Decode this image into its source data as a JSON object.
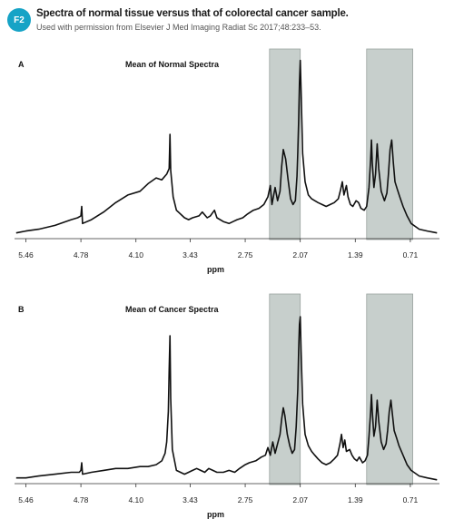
{
  "figure": {
    "badge": "F2",
    "title": "Spectra of normal tissue versus that of colorectal cancer sample.",
    "subtitle": "Used with permission from Elsevier J Med Imaging Radiat Sc 2017;48:233–53.",
    "colors": {
      "badge": "#16a3c6",
      "shade": "#c7cfcc",
      "line": "#111111"
    }
  },
  "chart_data": [
    {
      "type": "line",
      "panel": "A",
      "title": "Mean of Normal Spectra",
      "xlabel": "ppm",
      "ylabel": "",
      "x_reversed": true,
      "xlim": [
        5.6,
        0.35
      ],
      "ylim": [
        0,
        1.0
      ],
      "xticks": [
        "5.46",
        "4.78",
        "4.10",
        "3.43",
        "2.75",
        "2.07",
        "1.39",
        "0.71"
      ],
      "xtick_values": [
        5.46,
        4.78,
        4.1,
        3.43,
        2.75,
        2.07,
        1.39,
        0.71
      ],
      "shaded_regions": [
        [
          2.45,
          2.07
        ],
        [
          1.25,
          0.68
        ]
      ],
      "grid": false,
      "series": [
        {
          "points": [
            [
              5.58,
              0.03
            ],
            [
              5.46,
              0.04
            ],
            [
              5.3,
              0.05
            ],
            [
              5.1,
              0.07
            ],
            [
              4.9,
              0.1
            ],
            [
              4.82,
              0.11
            ],
            [
              4.78,
              0.12
            ],
            [
              4.77,
              0.17
            ],
            [
              4.76,
              0.08
            ],
            [
              4.65,
              0.1
            ],
            [
              4.5,
              0.14
            ],
            [
              4.35,
              0.19
            ],
            [
              4.2,
              0.23
            ],
            [
              4.05,
              0.25
            ],
            [
              3.95,
              0.29
            ],
            [
              3.85,
              0.32
            ],
            [
              3.78,
              0.31
            ],
            [
              3.72,
              0.34
            ],
            [
              3.69,
              0.37
            ],
            [
              3.68,
              0.55
            ],
            [
              3.67,
              0.36
            ],
            [
              3.64,
              0.22
            ],
            [
              3.6,
              0.15
            ],
            [
              3.5,
              0.11
            ],
            [
              3.45,
              0.1
            ],
            [
              3.4,
              0.11
            ],
            [
              3.32,
              0.12
            ],
            [
              3.28,
              0.14
            ],
            [
              3.22,
              0.11
            ],
            [
              3.18,
              0.12
            ],
            [
              3.13,
              0.15
            ],
            [
              3.1,
              0.11
            ],
            [
              3.02,
              0.09
            ],
            [
              2.95,
              0.08
            ],
            [
              2.9,
              0.09
            ],
            [
              2.85,
              0.1
            ],
            [
              2.78,
              0.11
            ],
            [
              2.72,
              0.13
            ],
            [
              2.65,
              0.15
            ],
            [
              2.58,
              0.16
            ],
            [
              2.52,
              0.18
            ],
            [
              2.47,
              0.22
            ],
            [
              2.44,
              0.28
            ],
            [
              2.42,
              0.18
            ],
            [
              2.38,
              0.27
            ],
            [
              2.35,
              0.2
            ],
            [
              2.32,
              0.25
            ],
            [
              2.3,
              0.38
            ],
            [
              2.28,
              0.47
            ],
            [
              2.25,
              0.42
            ],
            [
              2.22,
              0.31
            ],
            [
              2.19,
              0.21
            ],
            [
              2.16,
              0.18
            ],
            [
              2.13,
              0.2
            ],
            [
              2.11,
              0.33
            ],
            [
              2.1,
              0.46
            ],
            [
              2.09,
              0.62
            ],
            [
              2.08,
              0.82
            ],
            [
              2.07,
              0.94
            ],
            [
              2.06,
              0.78
            ],
            [
              2.04,
              0.45
            ],
            [
              2.01,
              0.3
            ],
            [
              1.97,
              0.23
            ],
            [
              1.93,
              0.21
            ],
            [
              1.89,
              0.2
            ],
            [
              1.85,
              0.19
            ],
            [
              1.8,
              0.18
            ],
            [
              1.75,
              0.17
            ],
            [
              1.7,
              0.18
            ],
            [
              1.65,
              0.19
            ],
            [
              1.6,
              0.21
            ],
            [
              1.57,
              0.26
            ],
            [
              1.55,
              0.3
            ],
            [
              1.53,
              0.23
            ],
            [
              1.5,
              0.28
            ],
            [
              1.48,
              0.22
            ],
            [
              1.45,
              0.18
            ],
            [
              1.42,
              0.17
            ],
            [
              1.38,
              0.2
            ],
            [
              1.35,
              0.19
            ],
            [
              1.32,
              0.16
            ],
            [
              1.28,
              0.15
            ],
            [
              1.25,
              0.17
            ],
            [
              1.22,
              0.27
            ],
            [
              1.2,
              0.42
            ],
            [
              1.19,
              0.52
            ],
            [
              1.18,
              0.4
            ],
            [
              1.16,
              0.27
            ],
            [
              1.14,
              0.34
            ],
            [
              1.12,
              0.5
            ],
            [
              1.1,
              0.37
            ],
            [
              1.07,
              0.25
            ],
            [
              1.03,
              0.2
            ],
            [
              1.0,
              0.24
            ],
            [
              0.98,
              0.34
            ],
            [
              0.96,
              0.47
            ],
            [
              0.94,
              0.52
            ],
            [
              0.92,
              0.4
            ],
            [
              0.9,
              0.3
            ],
            [
              0.87,
              0.26
            ],
            [
              0.84,
              0.22
            ],
            [
              0.8,
              0.17
            ],
            [
              0.75,
              0.12
            ],
            [
              0.7,
              0.08
            ],
            [
              0.6,
              0.05
            ],
            [
              0.5,
              0.04
            ],
            [
              0.38,
              0.03
            ]
          ]
        }
      ]
    },
    {
      "type": "line",
      "panel": "B",
      "title": "Mean of Cancer Spectra",
      "xlabel": "ppm",
      "ylabel": "",
      "x_reversed": true,
      "xlim": [
        5.6,
        0.35
      ],
      "ylim": [
        0,
        1.0
      ],
      "xticks": [
        "5.46",
        "4.78",
        "4.10",
        "3.43",
        "2.75",
        "2.07",
        "1.39",
        "0.71"
      ],
      "xtick_values": [
        5.46,
        4.78,
        4.1,
        3.43,
        2.75,
        2.07,
        1.39,
        0.71
      ],
      "shaded_regions": [
        [
          2.45,
          2.07
        ],
        [
          1.25,
          0.68
        ]
      ],
      "grid": false,
      "series": [
        {
          "points": [
            [
              5.58,
              0.03
            ],
            [
              5.46,
              0.03
            ],
            [
              5.3,
              0.04
            ],
            [
              5.1,
              0.05
            ],
            [
              4.9,
              0.06
            ],
            [
              4.8,
              0.06
            ],
            [
              4.78,
              0.07
            ],
            [
              4.77,
              0.11
            ],
            [
              4.76,
              0.05
            ],
            [
              4.65,
              0.06
            ],
            [
              4.5,
              0.07
            ],
            [
              4.35,
              0.08
            ],
            [
              4.2,
              0.08
            ],
            [
              4.05,
              0.09
            ],
            [
              3.95,
              0.09
            ],
            [
              3.85,
              0.1
            ],
            [
              3.78,
              0.12
            ],
            [
              3.74,
              0.16
            ],
            [
              3.72,
              0.22
            ],
            [
              3.7,
              0.38
            ],
            [
              3.69,
              0.6
            ],
            [
              3.68,
              0.78
            ],
            [
              3.67,
              0.45
            ],
            [
              3.65,
              0.18
            ],
            [
              3.6,
              0.07
            ],
            [
              3.5,
              0.05
            ],
            [
              3.45,
              0.06
            ],
            [
              3.4,
              0.07
            ],
            [
              3.35,
              0.08
            ],
            [
              3.3,
              0.07
            ],
            [
              3.25,
              0.06
            ],
            [
              3.2,
              0.08
            ],
            [
              3.15,
              0.07
            ],
            [
              3.1,
              0.06
            ],
            [
              3.02,
              0.06
            ],
            [
              2.95,
              0.07
            ],
            [
              2.88,
              0.06
            ],
            [
              2.82,
              0.08
            ],
            [
              2.75,
              0.1
            ],
            [
              2.7,
              0.11
            ],
            [
              2.62,
              0.12
            ],
            [
              2.55,
              0.14
            ],
            [
              2.5,
              0.15
            ],
            [
              2.47,
              0.19
            ],
            [
              2.44,
              0.15
            ],
            [
              2.41,
              0.22
            ],
            [
              2.38,
              0.16
            ],
            [
              2.35,
              0.21
            ],
            [
              2.32,
              0.26
            ],
            [
              2.3,
              0.34
            ],
            [
              2.28,
              0.4
            ],
            [
              2.26,
              0.36
            ],
            [
              2.23,
              0.26
            ],
            [
              2.2,
              0.2
            ],
            [
              2.17,
              0.16
            ],
            [
              2.14,
              0.18
            ],
            [
              2.12,
              0.3
            ],
            [
              2.1,
              0.5
            ],
            [
              2.09,
              0.7
            ],
            [
              2.08,
              0.84
            ],
            [
              2.07,
              0.88
            ],
            [
              2.06,
              0.7
            ],
            [
              2.04,
              0.42
            ],
            [
              2.01,
              0.26
            ],
            [
              1.97,
              0.2
            ],
            [
              1.93,
              0.17
            ],
            [
              1.89,
              0.15
            ],
            [
              1.85,
              0.13
            ],
            [
              1.8,
              0.11
            ],
            [
              1.75,
              0.1
            ],
            [
              1.7,
              0.11
            ],
            [
              1.65,
              0.13
            ],
            [
              1.61,
              0.15
            ],
            [
              1.58,
              0.21
            ],
            [
              1.56,
              0.26
            ],
            [
              1.54,
              0.19
            ],
            [
              1.52,
              0.23
            ],
            [
              1.5,
              0.17
            ],
            [
              1.46,
              0.18
            ],
            [
              1.43,
              0.15
            ],
            [
              1.4,
              0.13
            ],
            [
              1.37,
              0.12
            ],
            [
              1.34,
              0.14
            ],
            [
              1.3,
              0.11
            ],
            [
              1.27,
              0.12
            ],
            [
              1.24,
              0.15
            ],
            [
              1.22,
              0.25
            ],
            [
              1.2,
              0.38
            ],
            [
              1.19,
              0.47
            ],
            [
              1.18,
              0.38
            ],
            [
              1.16,
              0.25
            ],
            [
              1.14,
              0.3
            ],
            [
              1.12,
              0.44
            ],
            [
              1.1,
              0.33
            ],
            [
              1.07,
              0.22
            ],
            [
              1.04,
              0.18
            ],
            [
              1.01,
              0.21
            ],
            [
              0.99,
              0.28
            ],
            [
              0.97,
              0.38
            ],
            [
              0.95,
              0.44
            ],
            [
              0.93,
              0.36
            ],
            [
              0.91,
              0.28
            ],
            [
              0.88,
              0.24
            ],
            [
              0.85,
              0.2
            ],
            [
              0.8,
              0.15
            ],
            [
              0.75,
              0.1
            ],
            [
              0.7,
              0.07
            ],
            [
              0.6,
              0.04
            ],
            [
              0.5,
              0.03
            ],
            [
              0.38,
              0.02
            ]
          ]
        }
      ]
    }
  ]
}
